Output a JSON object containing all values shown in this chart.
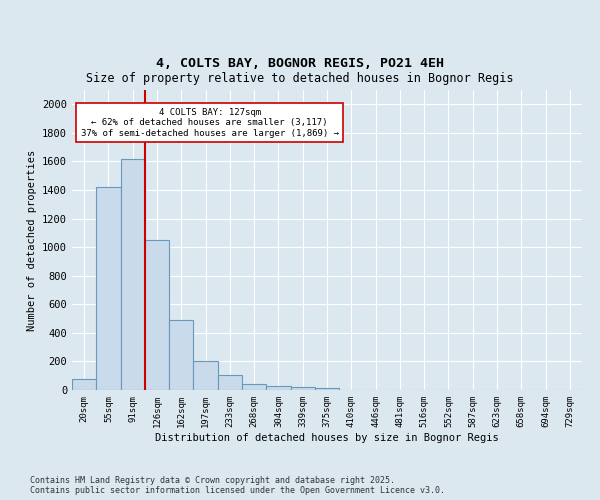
{
  "title": "4, COLTS BAY, BOGNOR REGIS, PO21 4EH",
  "subtitle": "Size of property relative to detached houses in Bognor Regis",
  "xlabel": "Distribution of detached houses by size in Bognor Regis",
  "ylabel": "Number of detached properties",
  "bar_labels": [
    "20sqm",
    "55sqm",
    "91sqm",
    "126sqm",
    "162sqm",
    "197sqm",
    "233sqm",
    "268sqm",
    "304sqm",
    "339sqm",
    "375sqm",
    "410sqm",
    "446sqm",
    "481sqm",
    "516sqm",
    "552sqm",
    "587sqm",
    "623sqm",
    "658sqm",
    "694sqm",
    "729sqm"
  ],
  "bar_values": [
    80,
    1420,
    1620,
    1050,
    490,
    205,
    105,
    40,
    30,
    20,
    15,
    0,
    0,
    0,
    0,
    0,
    0,
    0,
    0,
    0,
    0
  ],
  "bar_color": "#c9daea",
  "bar_edge_color": "#6699bb",
  "vline_color": "#cc0000",
  "annotation_title": "4 COLTS BAY: 127sqm",
  "annotation_line1": "← 62% of detached houses are smaller (3,117)",
  "annotation_line2": "37% of semi-detached houses are larger (1,869) →",
  "annotation_box_color": "#cc0000",
  "ylim": [
    0,
    2100
  ],
  "yticks": [
    0,
    200,
    400,
    600,
    800,
    1000,
    1200,
    1400,
    1600,
    1800,
    2000
  ],
  "footer1": "Contains HM Land Registry data © Crown copyright and database right 2025.",
  "footer2": "Contains public sector information licensed under the Open Government Licence v3.0.",
  "bg_color": "#dce8f0",
  "plot_bg_color": "#dce8f0"
}
